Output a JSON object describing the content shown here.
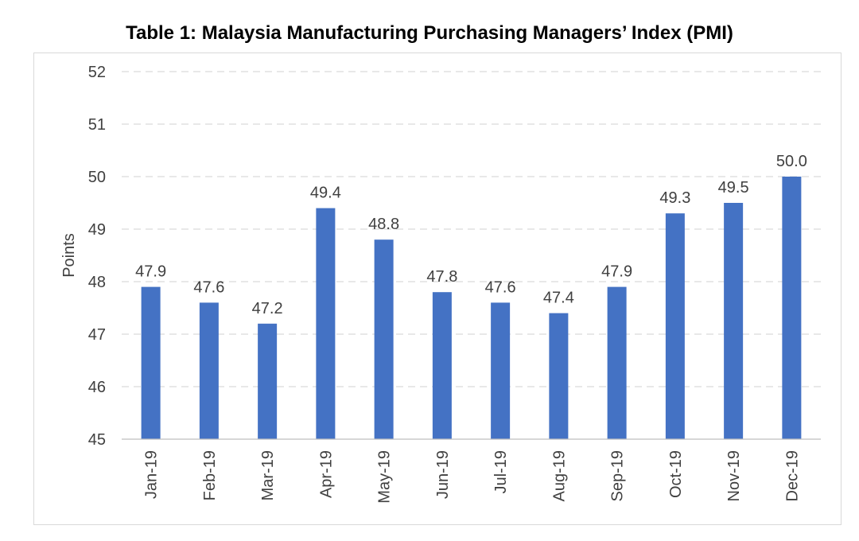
{
  "chart_data": {
    "type": "bar",
    "title": "Table 1: Malaysia Manufacturing Purchasing Managers’ Index (PMI)",
    "xlabel": "",
    "ylabel": "Points",
    "ylim": [
      45,
      52
    ],
    "yticks": [
      "45",
      "46",
      "47",
      "48",
      "49",
      "50",
      "51",
      "52"
    ],
    "categories": [
      "Jan-19",
      "Feb-19",
      "Mar-19",
      "Apr-19",
      "May-19",
      "Jun-19",
      "Jul-19",
      "Aug-19",
      "Sep-19",
      "Oct-19",
      "Nov-19",
      "Dec-19"
    ],
    "values": [
      47.9,
      47.6,
      47.2,
      49.4,
      48.8,
      47.8,
      47.6,
      47.4,
      47.9,
      49.3,
      49.5,
      50.0
    ],
    "data_labels": [
      "47.9",
      "47.6",
      "47.2",
      "49.4",
      "48.8",
      "47.8",
      "47.6",
      "47.4",
      "47.9",
      "49.3",
      "49.5",
      "50.0"
    ],
    "grid": true,
    "legend": "none",
    "bar_color": "#4472C4"
  }
}
